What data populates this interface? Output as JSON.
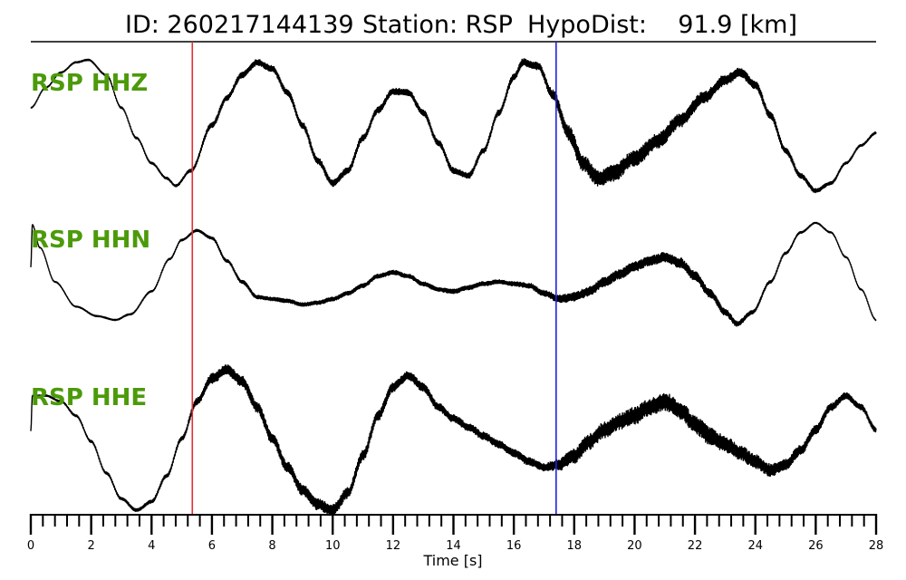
{
  "title": {
    "id": "ID: 260217144139",
    "station": "Station: RSP",
    "hypodist": "HypoDist:    91.9 [km]"
  },
  "colors": {
    "channel_label": "#4c9a0a",
    "p_pick": "#e03030",
    "s_pick": "#2020e0",
    "trace": "#000000"
  },
  "chart_data": {
    "type": "line",
    "xlabel": "Time [s]",
    "xlim": [
      0,
      28
    ],
    "x_ticks": [
      0,
      2,
      4,
      6,
      8,
      10,
      12,
      14,
      16,
      18,
      20,
      22,
      24,
      26,
      28
    ],
    "minor_tick_step": 0.4,
    "picks": [
      {
        "name": "P",
        "time": 5.35,
        "color": "#e03030"
      },
      {
        "name": "S",
        "time": 17.4,
        "color": "#2020e0"
      }
    ],
    "series": [
      {
        "name": "RSP HHZ",
        "noise": [
          [
            0,
            0.002
          ],
          [
            5,
            0.004
          ],
          [
            6,
            0.01
          ],
          [
            10,
            0.012
          ],
          [
            15,
            0.01
          ],
          [
            17,
            0.014
          ],
          [
            18,
            0.03
          ],
          [
            21,
            0.028
          ],
          [
            24,
            0.014
          ],
          [
            27,
            0.004
          ],
          [
            28,
            0.004
          ]
        ],
        "keypoints": [
          [
            0,
            0.62
          ],
          [
            0.5,
            0.78
          ],
          [
            1.0,
            0.9
          ],
          [
            1.5,
            0.98
          ],
          [
            1.9,
            1.0
          ],
          [
            2.5,
            0.88
          ],
          [
            3.0,
            0.62
          ],
          [
            3.5,
            0.38
          ],
          [
            4.0,
            0.18
          ],
          [
            4.5,
            0.06
          ],
          [
            4.8,
            0.0
          ],
          [
            5.3,
            0.12
          ],
          [
            6.0,
            0.48
          ],
          [
            6.5,
            0.7
          ],
          [
            7.0,
            0.88
          ],
          [
            7.5,
            0.98
          ],
          [
            8.0,
            0.93
          ],
          [
            8.5,
            0.74
          ],
          [
            9.0,
            0.48
          ],
          [
            9.5,
            0.2
          ],
          [
            10.0,
            0.02
          ],
          [
            10.5,
            0.12
          ],
          [
            11.0,
            0.38
          ],
          [
            11.5,
            0.6
          ],
          [
            12.0,
            0.75
          ],
          [
            12.5,
            0.74
          ],
          [
            13.0,
            0.58
          ],
          [
            13.5,
            0.34
          ],
          [
            14.0,
            0.12
          ],
          [
            14.5,
            0.08
          ],
          [
            15.0,
            0.28
          ],
          [
            15.5,
            0.58
          ],
          [
            16.0,
            0.86
          ],
          [
            16.3,
            0.98
          ],
          [
            16.8,
            0.95
          ],
          [
            17.3,
            0.72
          ],
          [
            17.8,
            0.42
          ],
          [
            18.3,
            0.18
          ],
          [
            18.8,
            0.06
          ],
          [
            19.3,
            0.1
          ],
          [
            20.0,
            0.22
          ],
          [
            20.8,
            0.36
          ],
          [
            21.5,
            0.52
          ],
          [
            22.3,
            0.7
          ],
          [
            23.0,
            0.84
          ],
          [
            23.5,
            0.9
          ],
          [
            24.0,
            0.8
          ],
          [
            24.5,
            0.56
          ],
          [
            25.0,
            0.28
          ],
          [
            25.5,
            0.08
          ],
          [
            26.0,
            -0.04
          ],
          [
            26.5,
            0.02
          ],
          [
            27.0,
            0.18
          ],
          [
            27.5,
            0.32
          ],
          [
            28.0,
            0.42
          ]
        ]
      },
      {
        "name": "RSP HHN",
        "noise": [
          [
            0,
            0.002
          ],
          [
            5,
            0.004
          ],
          [
            7,
            0.008
          ],
          [
            12,
            0.01
          ],
          [
            16,
            0.01
          ],
          [
            17,
            0.014
          ],
          [
            18,
            0.022
          ],
          [
            22,
            0.024
          ],
          [
            24,
            0.008
          ],
          [
            26,
            0.003
          ],
          [
            28,
            0.003
          ]
        ],
        "keypoints": [
          [
            0,
            0.55
          ],
          [
            0.05,
            1.0
          ],
          [
            0.3,
            0.76
          ],
          [
            0.8,
            0.4
          ],
          [
            1.5,
            0.14
          ],
          [
            2.2,
            0.04
          ],
          [
            2.8,
            0.0
          ],
          [
            3.3,
            0.06
          ],
          [
            4.0,
            0.3
          ],
          [
            4.6,
            0.64
          ],
          [
            5.0,
            0.84
          ],
          [
            5.5,
            0.94
          ],
          [
            6.0,
            0.86
          ],
          [
            6.5,
            0.62
          ],
          [
            7.0,
            0.4
          ],
          [
            7.5,
            0.24
          ],
          [
            8.0,
            0.22
          ],
          [
            8.5,
            0.2
          ],
          [
            9.0,
            0.16
          ],
          [
            9.5,
            0.18
          ],
          [
            10.0,
            0.22
          ],
          [
            10.5,
            0.28
          ],
          [
            11.0,
            0.36
          ],
          [
            11.5,
            0.46
          ],
          [
            12.0,
            0.5
          ],
          [
            12.5,
            0.46
          ],
          [
            13.0,
            0.38
          ],
          [
            13.5,
            0.32
          ],
          [
            14.0,
            0.3
          ],
          [
            14.5,
            0.34
          ],
          [
            15.0,
            0.38
          ],
          [
            15.5,
            0.4
          ],
          [
            16.0,
            0.38
          ],
          [
            16.5,
            0.36
          ],
          [
            17.0,
            0.28
          ],
          [
            17.5,
            0.22
          ],
          [
            18.0,
            0.24
          ],
          [
            18.5,
            0.3
          ],
          [
            19.0,
            0.4
          ],
          [
            19.5,
            0.48
          ],
          [
            20.0,
            0.56
          ],
          [
            20.5,
            0.62
          ],
          [
            21.0,
            0.66
          ],
          [
            21.5,
            0.6
          ],
          [
            22.0,
            0.46
          ],
          [
            22.5,
            0.28
          ],
          [
            23.0,
            0.08
          ],
          [
            23.4,
            -0.04
          ],
          [
            23.9,
            0.08
          ],
          [
            24.5,
            0.4
          ],
          [
            25.0,
            0.7
          ],
          [
            25.5,
            0.92
          ],
          [
            26.0,
            1.02
          ],
          [
            26.5,
            0.92
          ],
          [
            27.0,
            0.66
          ],
          [
            27.5,
            0.32
          ],
          [
            28.0,
            0.0
          ]
        ]
      },
      {
        "name": "RSP HHE",
        "noise": [
          [
            0,
            0.002
          ],
          [
            5,
            0.006
          ],
          [
            6,
            0.016
          ],
          [
            10,
            0.018
          ],
          [
            14,
            0.012
          ],
          [
            17,
            0.012
          ],
          [
            18,
            0.024
          ],
          [
            22,
            0.03
          ],
          [
            25,
            0.018
          ],
          [
            27,
            0.01
          ],
          [
            28,
            0.008
          ]
        ],
        "keypoints": [
          [
            0,
            0.55
          ],
          [
            0.05,
            0.8
          ],
          [
            0.5,
            0.8
          ],
          [
            1.0,
            0.76
          ],
          [
            1.5,
            0.66
          ],
          [
            2.0,
            0.48
          ],
          [
            2.5,
            0.26
          ],
          [
            3.0,
            0.08
          ],
          [
            3.5,
            0.0
          ],
          [
            4.0,
            0.06
          ],
          [
            4.5,
            0.24
          ],
          [
            5.0,
            0.5
          ],
          [
            5.5,
            0.76
          ],
          [
            6.0,
            0.92
          ],
          [
            6.5,
            0.98
          ],
          [
            7.0,
            0.9
          ],
          [
            7.5,
            0.72
          ],
          [
            8.0,
            0.5
          ],
          [
            8.5,
            0.3
          ],
          [
            9.0,
            0.14
          ],
          [
            9.5,
            0.04
          ],
          [
            10.0,
            0.0
          ],
          [
            10.5,
            0.12
          ],
          [
            11.0,
            0.38
          ],
          [
            11.5,
            0.66
          ],
          [
            12.0,
            0.86
          ],
          [
            12.5,
            0.94
          ],
          [
            13.0,
            0.86
          ],
          [
            13.5,
            0.72
          ],
          [
            14.0,
            0.64
          ],
          [
            14.5,
            0.58
          ],
          [
            15.0,
            0.52
          ],
          [
            15.5,
            0.46
          ],
          [
            16.0,
            0.4
          ],
          [
            16.5,
            0.34
          ],
          [
            17.0,
            0.3
          ],
          [
            17.5,
            0.32
          ],
          [
            18.0,
            0.38
          ],
          [
            18.5,
            0.48
          ],
          [
            19.0,
            0.56
          ],
          [
            19.5,
            0.62
          ],
          [
            20.0,
            0.66
          ],
          [
            20.5,
            0.72
          ],
          [
            21.0,
            0.76
          ],
          [
            21.5,
            0.7
          ],
          [
            22.0,
            0.6
          ],
          [
            22.5,
            0.52
          ],
          [
            23.0,
            0.46
          ],
          [
            23.5,
            0.4
          ],
          [
            24.0,
            0.34
          ],
          [
            24.5,
            0.28
          ],
          [
            25.0,
            0.32
          ],
          [
            25.5,
            0.42
          ],
          [
            26.0,
            0.56
          ],
          [
            26.5,
            0.72
          ],
          [
            27.0,
            0.8
          ],
          [
            27.5,
            0.72
          ],
          [
            28.0,
            0.56
          ]
        ]
      }
    ]
  }
}
